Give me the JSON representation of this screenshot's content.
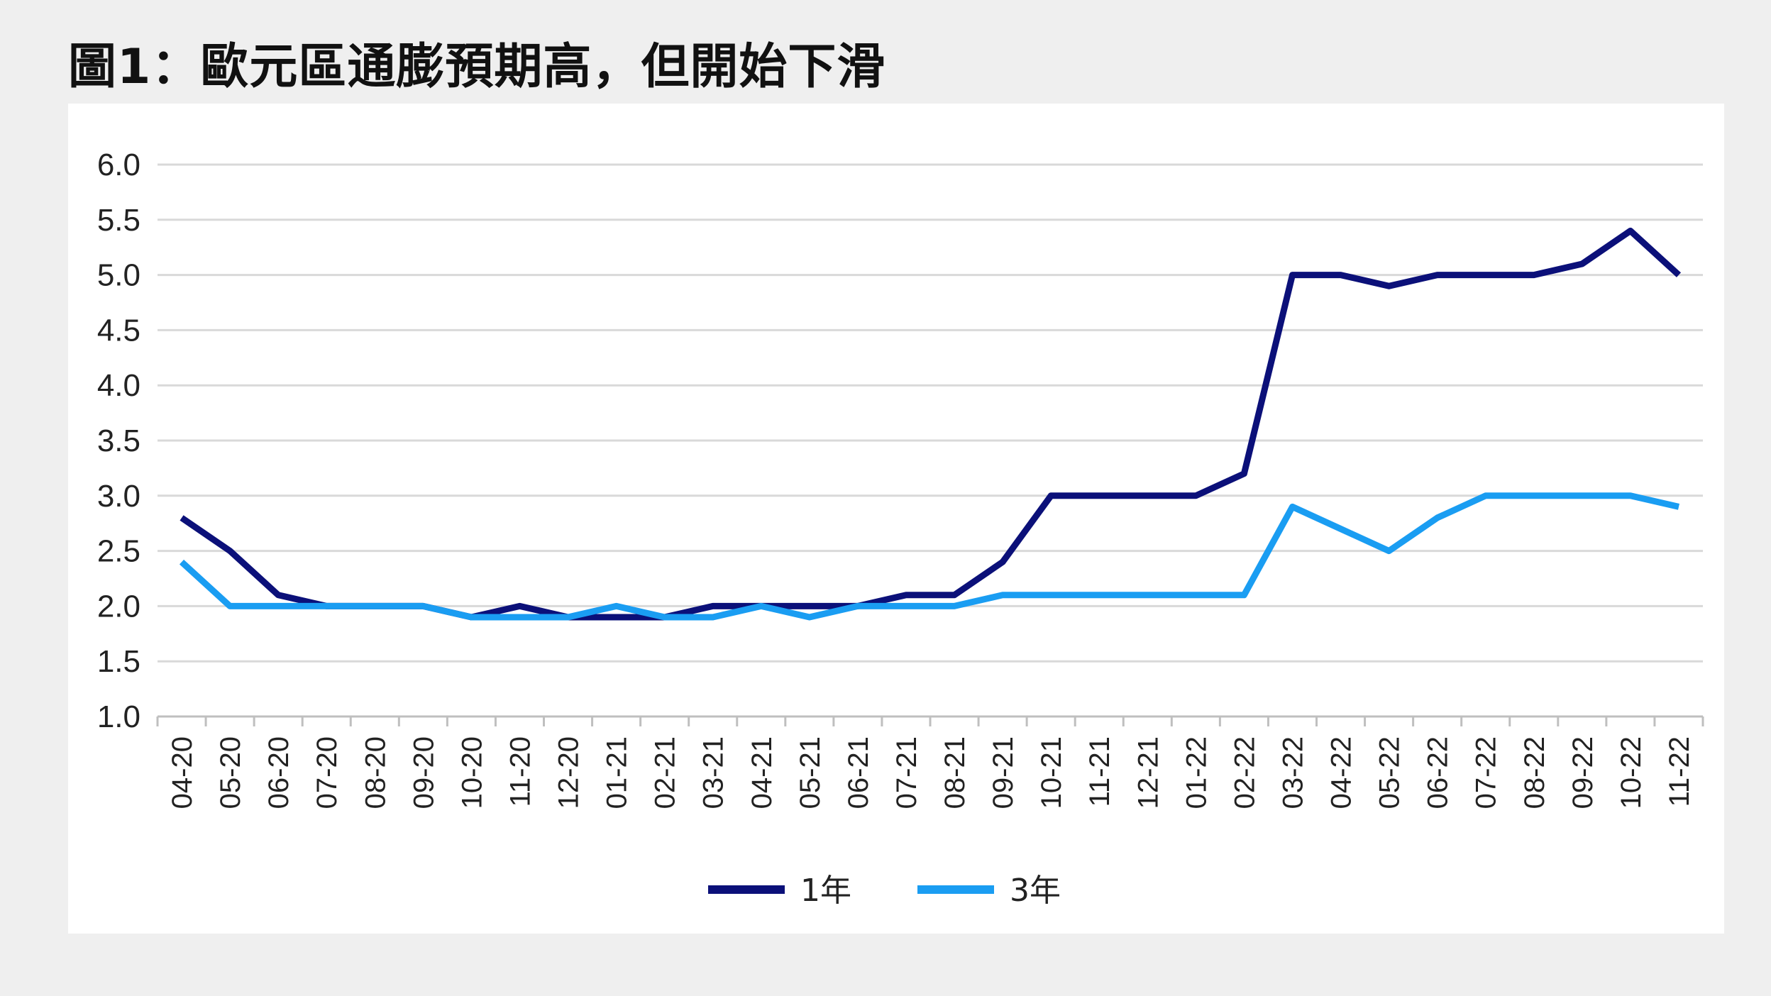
{
  "title": "圖1：歐元區通膨預期高，但開始下滑",
  "colors": {
    "series_1y": "#0b1079",
    "series_3y": "#1a9df2",
    "grid": "#d9d9d9",
    "axis": "#bfbfbf"
  },
  "chart_data": {
    "type": "line",
    "title": "圖1：歐元區通膨預期高，但開始下滑",
    "xlabel": "",
    "ylabel": "",
    "ylim": [
      1.0,
      6.0
    ],
    "yticks": [
      "1.0",
      "1.5",
      "2.0",
      "2.5",
      "3.0",
      "3.5",
      "4.0",
      "4.5",
      "5.0",
      "5.5",
      "6.0"
    ],
    "grid": true,
    "legend_position": "bottom",
    "categories": [
      "04-20",
      "05-20",
      "06-20",
      "07-20",
      "08-20",
      "09-20",
      "10-20",
      "11-20",
      "12-20",
      "01-21",
      "02-21",
      "03-21",
      "04-21",
      "05-21",
      "06-21",
      "07-21",
      "08-21",
      "09-21",
      "10-21",
      "11-21",
      "12-21",
      "01-22",
      "02-22",
      "03-22",
      "04-22",
      "05-22",
      "06-22",
      "07-22",
      "08-22",
      "09-22",
      "10-22",
      "11-22"
    ],
    "series": [
      {
        "name": "1年",
        "color": "#0b1079",
        "values": [
          2.8,
          2.5,
          2.1,
          2.0,
          2.0,
          2.0,
          1.9,
          2.0,
          1.9,
          1.9,
          1.9,
          2.0,
          2.0,
          2.0,
          2.0,
          2.1,
          2.1,
          2.4,
          3.0,
          3.0,
          3.0,
          3.0,
          3.2,
          5.0,
          5.0,
          4.9,
          5.0,
          5.0,
          5.0,
          5.1,
          5.4,
          5.0
        ]
      },
      {
        "name": "3年",
        "color": "#1a9df2",
        "values": [
          2.4,
          2.0,
          2.0,
          2.0,
          2.0,
          2.0,
          1.9,
          1.9,
          1.9,
          2.0,
          1.9,
          1.9,
          2.0,
          1.9,
          2.0,
          2.0,
          2.0,
          2.1,
          2.1,
          2.1,
          2.1,
          2.1,
          2.1,
          2.9,
          2.7,
          2.5,
          2.8,
          3.0,
          3.0,
          3.0,
          3.0,
          2.9
        ]
      }
    ]
  }
}
